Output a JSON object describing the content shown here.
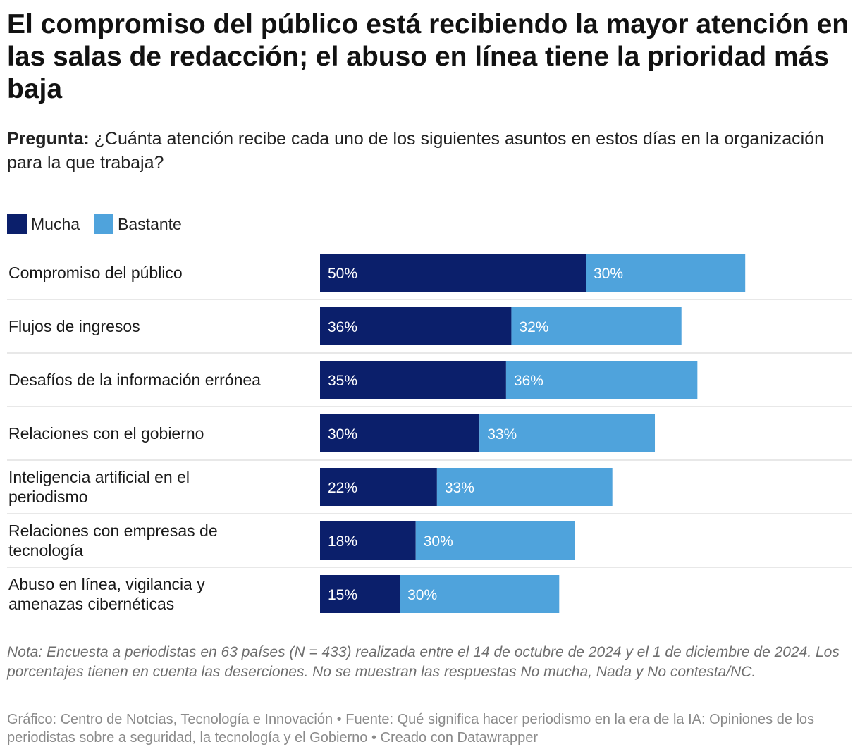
{
  "title": "El compromiso del público está recibiendo la mayor atención en las salas de redacción; el abuso en línea tiene la prioridad más baja",
  "subtitle": {
    "prefix": "Pregunta:",
    "text": " ¿Cuánta atención recibe cada uno de los siguientes asuntos en estos días en la organización para la que trabaja?"
  },
  "colors": {
    "mucha": "#0b1f6b",
    "bastante": "#4fa3dc",
    "grid": "#d0d0d0"
  },
  "chart_data": {
    "type": "bar",
    "orientation": "horizontal",
    "stacked": true,
    "categories": [
      "Compromiso del público",
      "Flujos de ingresos",
      "Desafíos de la información errónea",
      "Relaciones con el gobierno",
      "Inteligencia artificial en el periodismo",
      "Relaciones con empresas de tecnología",
      "Abuso en línea, vigilancia y amenazas cibernéticas"
    ],
    "series": [
      {
        "name": "Mucha",
        "values": [
          50,
          36,
          35,
          30,
          22,
          18,
          15
        ]
      },
      {
        "name": "Bastante",
        "values": [
          30,
          32,
          36,
          33,
          33,
          30,
          30
        ]
      }
    ],
    "value_suffix": "%",
    "legend_position": "top-left"
  },
  "note": "Nota: Encuesta a periodistas en 63 países (N = 433) realizada entre el 14 de octubre de 2024 y el 1 de diciembre de 2024. Los porcentajes tienen en cuenta las deserciones. No se muestran las respuestas No mucha, Nada y No contesta/NC.",
  "credits": "Gráfico: Centro de Notcias, Tecnología e Innovación • Fuente: Qué significa hacer periodismo en la era de la IA: Opiniones de los periodistas sobre a seguridad, la tecnología y el Gobierno • Creado con Datawrapper"
}
